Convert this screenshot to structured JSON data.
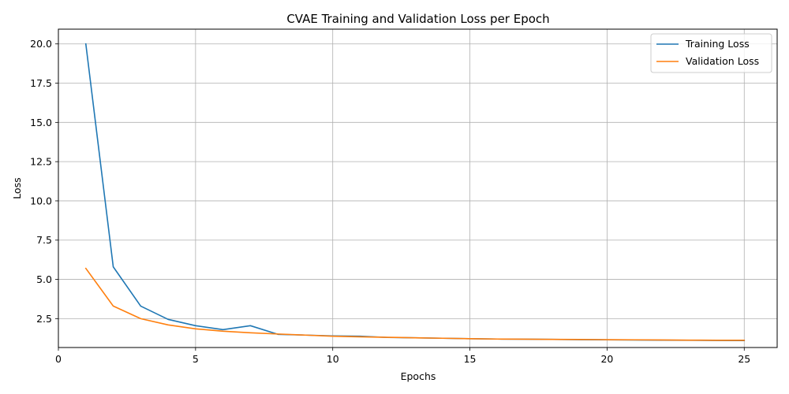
{
  "chart_data": {
    "type": "line",
    "title": "CVAE Training and Validation Loss per Epoch",
    "xlabel": "Epochs",
    "ylabel": "Loss",
    "x": [
      1,
      2,
      3,
      4,
      5,
      6,
      7,
      8,
      9,
      10,
      11,
      12,
      13,
      14,
      15,
      16,
      17,
      18,
      19,
      20,
      21,
      22,
      23,
      24,
      25
    ],
    "series": [
      {
        "name": "Training Loss",
        "color": "#1f77b4",
        "values": [
          20.0,
          5.8,
          3.3,
          2.45,
          2.05,
          1.8,
          2.05,
          1.5,
          1.45,
          1.4,
          1.38,
          1.3,
          1.28,
          1.25,
          1.22,
          1.2,
          1.19,
          1.18,
          1.16,
          1.15,
          1.14,
          1.13,
          1.12,
          1.11,
          1.1
        ]
      },
      {
        "name": "Validation Loss",
        "color": "#ff7f0e",
        "values": [
          5.7,
          3.3,
          2.5,
          2.1,
          1.85,
          1.7,
          1.6,
          1.52,
          1.45,
          1.38,
          1.34,
          1.31,
          1.28,
          1.25,
          1.22,
          1.2,
          1.19,
          1.18,
          1.17,
          1.16,
          1.15,
          1.14,
          1.13,
          1.12,
          1.12
        ]
      }
    ],
    "xlim": [
      0,
      26.2
    ],
    "ylim": [
      0.66,
      20.94
    ],
    "xticks": [
      0,
      5,
      10,
      15,
      20,
      25
    ],
    "xtick_labels": [
      "0",
      "5",
      "10",
      "15",
      "20",
      "25"
    ],
    "yticks": [
      2.5,
      5.0,
      7.5,
      10.0,
      12.5,
      15.0,
      17.5,
      20.0
    ],
    "ytick_labels": [
      "2.5",
      "5.0",
      "7.5",
      "10.0",
      "12.5",
      "15.0",
      "17.5",
      "20.0"
    ],
    "grid": true,
    "legend_position": "top-right"
  }
}
